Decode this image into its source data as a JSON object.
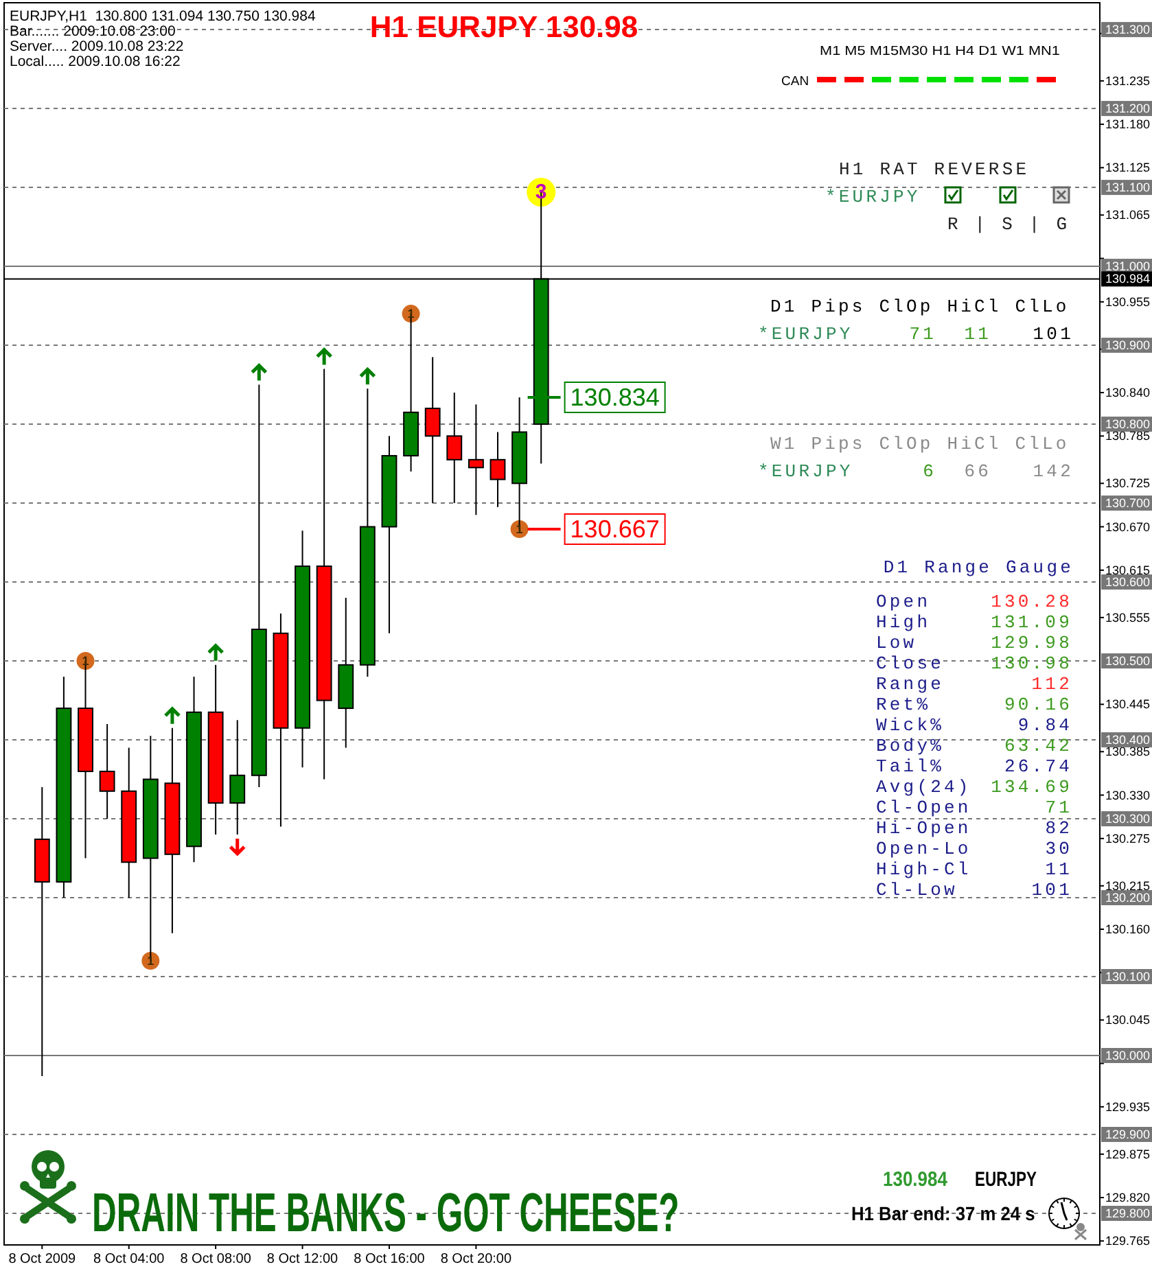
{
  "chart_data": {
    "type": "candlestick",
    "title": "H1 EURJPY 130.98",
    "x": [
      "2009-10-08T00:00",
      "2009-10-08T01:00",
      "2009-10-08T02:00",
      "2009-10-08T03:00",
      "2009-10-08T04:00",
      "2009-10-08T05:00",
      "2009-10-08T06:00",
      "2009-10-08T07:00",
      "2009-10-08T08:00",
      "2009-10-08T09:00",
      "2009-10-08T10:00",
      "2009-10-08T11:00",
      "2009-10-08T12:00",
      "2009-10-08T13:00",
      "2009-10-08T14:00",
      "2009-10-08T15:00",
      "2009-10-08T16:00",
      "2009-10-08T17:00",
      "2009-10-08T18:00",
      "2009-10-08T19:00",
      "2009-10-08T20:00",
      "2009-10-08T21:00",
      "2009-10-08T22:00",
      "2009-10-08T23:00"
    ],
    "ohlc": [
      [
        130.274,
        130.34,
        129.974,
        130.22
      ],
      [
        130.22,
        130.48,
        130.2,
        130.44
      ],
      [
        130.44,
        130.5,
        130.25,
        130.36
      ],
      [
        130.36,
        130.42,
        130.3,
        130.335
      ],
      [
        130.335,
        130.39,
        130.2,
        130.245
      ],
      [
        130.25,
        130.405,
        130.12,
        130.35
      ],
      [
        130.345,
        130.415,
        130.155,
        130.255
      ],
      [
        130.265,
        130.48,
        130.245,
        130.435
      ],
      [
        130.435,
        130.495,
        130.28,
        130.32
      ],
      [
        130.32,
        130.425,
        130.28,
        130.355
      ],
      [
        130.355,
        130.85,
        130.34,
        130.54
      ],
      [
        130.535,
        130.56,
        130.29,
        130.415
      ],
      [
        130.415,
        130.665,
        130.365,
        130.62
      ],
      [
        130.62,
        130.87,
        130.35,
        130.45
      ],
      [
        130.44,
        130.58,
        130.39,
        130.495
      ],
      [
        130.495,
        130.845,
        130.48,
        130.67
      ],
      [
        130.67,
        130.785,
        130.535,
        130.76
      ],
      [
        130.76,
        130.94,
        130.74,
        130.815
      ],
      [
        130.82,
        130.885,
        130.7,
        130.785
      ],
      [
        130.785,
        130.84,
        130.7,
        130.755
      ],
      [
        130.755,
        130.825,
        130.685,
        130.745
      ],
      [
        130.755,
        130.79,
        130.695,
        130.73
      ],
      [
        130.725,
        130.834,
        130.667,
        130.79
      ],
      [
        130.8,
        131.094,
        130.75,
        130.984
      ]
    ],
    "colors": [
      "#ff0000",
      "#008000",
      "#ff0000",
      "#ff0000",
      "#ff0000",
      "#008000",
      "#ff0000",
      "#008000",
      "#ff0000",
      "#008000",
      "#008000",
      "#ff0000",
      "#008000",
      "#ff0000",
      "#008000",
      "#008000",
      "#008000",
      "#008000",
      "#ff0000",
      "#ff0000",
      "#ff0000",
      "#ff0000",
      "#008000",
      "#008000"
    ],
    "xlim": [
      "2009-10-07T22:15",
      "2009-10-10T00:45"
    ],
    "xticks": [
      {
        "value": "2009-10-08T00:00",
        "label": "8 Oct 2009"
      },
      {
        "value": "2009-10-08T04:00",
        "label": "8 Oct 04:00"
      },
      {
        "value": "2009-10-08T08:00",
        "label": "8 Oct 08:00"
      },
      {
        "value": "2009-10-08T12:00",
        "label": "8 Oct 12:00"
      },
      {
        "value": "2009-10-08T16:00",
        "label": "8 Oct 16:00"
      },
      {
        "value": "2009-10-08T20:00",
        "label": "8 Oct 20:00"
      }
    ],
    "ylim": [
      129.76,
      131.334
    ],
    "yticks": [
      {
        "value": 131.295,
        "label": null
      },
      {
        "value": 131.235,
        "label": "131.235"
      },
      {
        "value": 131.18,
        "label": "131.180"
      },
      {
        "value": 131.125,
        "label": "131.125"
      },
      {
        "value": 131.065,
        "label": "131.065"
      },
      {
        "value": 131.01,
        "label": null
      },
      {
        "value": 130.955,
        "label": "130.955"
      },
      {
        "value": 130.895,
        "label": null
      },
      {
        "value": 130.84,
        "label": "130.840"
      },
      {
        "value": 130.785,
        "label": "130.785"
      },
      {
        "value": 130.725,
        "label": "130.725"
      },
      {
        "value": 130.67,
        "label": "130.670"
      },
      {
        "value": 130.615,
        "label": "130.615"
      },
      {
        "value": 130.555,
        "label": "130.555"
      },
      {
        "value": 130.445,
        "label": "130.445"
      },
      {
        "value": 130.385,
        "label": "130.385"
      },
      {
        "value": 130.33,
        "label": "130.330"
      },
      {
        "value": 130.275,
        "label": "130.275"
      },
      {
        "value": 130.215,
        "label": "130.215"
      },
      {
        "value": 130.16,
        "label": "130.160"
      },
      {
        "value": 130.105,
        "label": null
      },
      {
        "value": 130.045,
        "label": "130.045"
      },
      {
        "value": 129.99,
        "label": null
      },
      {
        "value": 129.935,
        "label": "129.935"
      },
      {
        "value": 129.875,
        "label": "129.875"
      },
      {
        "value": 129.82,
        "label": "129.820"
      },
      {
        "value": 129.765,
        "label": "129.765"
      }
    ],
    "series": [
      {
        "type": "scatter",
        "color": "#d2691e",
        "x": [
          "2009-10-08T02:00",
          "2009-10-08T05:00",
          "2009-10-08T17:00",
          "2009-10-08T22:00"
        ],
        "values": [
          130.5,
          130.12,
          130.94,
          130.667
        ]
      },
      {
        "type": "scatter",
        "color": "#ffff00",
        "x": [
          "2009-10-08T23:00"
        ],
        "values": [
          131.094
        ]
      }
    ],
    "marker": "circle",
    "ref_lines": [
      {
        "axis": "y",
        "value": 131.3,
        "label": "131.300",
        "color": "#777777",
        "line_style": "dashed"
      },
      {
        "axis": "y",
        "value": 131.2,
        "label": "131.200",
        "color": "#777777",
        "line_style": "dashed"
      },
      {
        "axis": "y",
        "value": 131.1,
        "label": "131.100",
        "color": "#777777",
        "line_style": "dashed"
      },
      {
        "axis": "y",
        "value": 131.0,
        "label": "131.000",
        "color": "#777777",
        "line_style": "solid"
      },
      {
        "axis": "y",
        "value": 130.984,
        "label": "130.984",
        "color": "#000000",
        "line_style": "solid"
      },
      {
        "axis": "y",
        "value": 130.9,
        "label": "130.900",
        "color": "#777777",
        "line_style": "dashed"
      },
      {
        "axis": "y",
        "value": 130.8,
        "label": "130.800",
        "color": "#777777",
        "line_style": "dashed"
      },
      {
        "axis": "y",
        "value": 130.7,
        "label": "130.700",
        "color": "#777777",
        "line_style": "dashed"
      },
      {
        "axis": "y",
        "value": 130.6,
        "label": "130.600",
        "color": "#777777",
        "line_style": "dashed"
      },
      {
        "axis": "y",
        "value": 130.5,
        "label": "130.500",
        "color": "#777777",
        "line_style": "dashed"
      },
      {
        "axis": "y",
        "value": 130.4,
        "label": "130.400",
        "color": "#777777",
        "line_style": "dashed"
      },
      {
        "axis": "y",
        "value": 130.3,
        "label": "130.300",
        "color": "#777777",
        "line_style": "dashed"
      },
      {
        "axis": "y",
        "value": 130.2,
        "label": "130.200",
        "color": "#777777",
        "line_style": "dashed"
      },
      {
        "axis": "y",
        "value": 130.1,
        "label": "130.100",
        "color": "#777777",
        "line_style": "dashed"
      },
      {
        "axis": "y",
        "value": 130.0,
        "label": "130.000",
        "color": "#777777",
        "line_style": "solid"
      },
      {
        "axis": "y",
        "value": 129.9,
        "label": "129.900",
        "color": "#777777",
        "line_style": "dashed"
      },
      {
        "axis": "y",
        "value": 129.8,
        "label": "129.800",
        "color": "#777777",
        "line_style": "dashed"
      }
    ],
    "annotations": [
      "EURJPY,H1  130.800 131.094 130.750 130.984",
      "Bar....... 2009.10.08 23:00",
      "Server.... 2009.10.08 23:22",
      "Local..... 2009.10.08 16:22",
      "M1 M5 M15M30 H1 H4 D1 W1 MN1",
      "CAN",
      "H1 RAT REVERSE",
      "*EURJPY",
      "R | S | G",
      "D1 Pips ClOp HiCl ClLo",
      "*EURJPY",
      "71",
      "11",
      "101",
      "W1 Pips ClOp HiCl ClLo",
      "*EURJPY",
      "6",
      "66",
      "142",
      "D1 Range Gauge",
      "Open",
      "130.28",
      "High",
      "131.09",
      "Low",
      "129.98",
      "Close",
      "130.98",
      "Range",
      "112",
      "Ret%",
      "90.16",
      "Wick%",
      "9.84",
      "Body%",
      "63.42",
      "Tail%",
      "26.74",
      "Avg(24)",
      "134.69",
      "Cl-Open",
      "71",
      "Hi-Open",
      "82",
      "Open-Lo",
      "30",
      "High-Cl",
      "11",
      "Cl-Low",
      "101",
      {
        "text": "130.834",
        "x": "2009-10-08T22:00",
        "y": 130.834
      },
      {
        "text": "130.667",
        "x": "2009-10-08T22:00",
        "y": 130.667
      },
      "DRAIN THE BANKS - GOT CHEESE?",
      "130.984",
      "EURJPY",
      "H1 Bar end: 37 m 24 s",
      {
        "text": "1",
        "x": "2009-10-08T02:00",
        "y": 130.5
      },
      {
        "text": "1",
        "x": "2009-10-08T05:00",
        "y": 130.12
      },
      {
        "text": "1",
        "x": "2009-10-08T17:00",
        "y": 130.94
      },
      {
        "text": "1",
        "x": "2009-10-08T22:00",
        "y": 130.667
      },
      {
        "text": "3",
        "x": "2009-10-08T23:00",
        "y": 131.094
      }
    ]
  }
}
